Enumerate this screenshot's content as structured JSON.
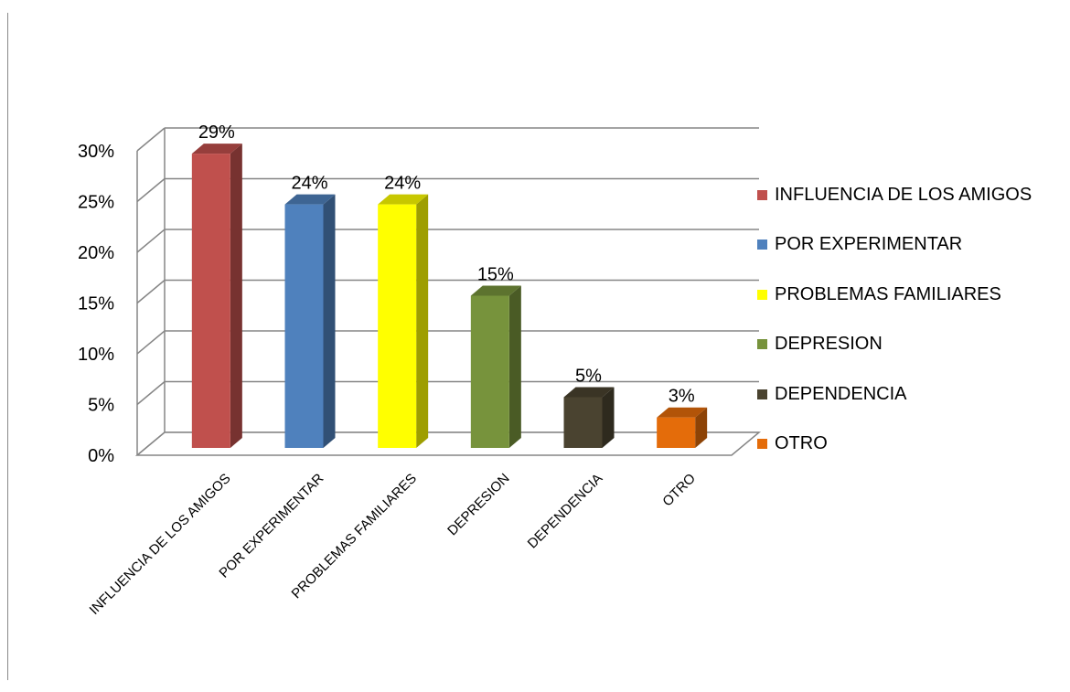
{
  "chart_data": {
    "type": "bar",
    "categories": [
      "INFLUENCIA DE LOS AMIGOS",
      "POR EXPERIMENTAR",
      "PROBLEMAS FAMILIARES",
      "DEPRESION",
      "DEPENDENCIA",
      "OTRO"
    ],
    "values": [
      29,
      24,
      24,
      15,
      5,
      3
    ],
    "data_labels": [
      "29%",
      "24%",
      "24%",
      "15%",
      "5%",
      "3%"
    ],
    "colors": [
      "#C0504D",
      "#4F81BD",
      "#FFFF00",
      "#77933C",
      "#4A4330",
      "#E46C0A"
    ],
    "y_ticks": [
      0,
      5,
      10,
      15,
      20,
      25,
      30
    ],
    "y_tick_labels": [
      "0%",
      "5%",
      "10%",
      "15%",
      "20%",
      "25%",
      "30%"
    ],
    "ylim": [
      0,
      30
    ],
    "title": "",
    "xlabel": "",
    "ylabel": "",
    "grid": true,
    "style": "3d-columns",
    "legend_position": "right"
  }
}
